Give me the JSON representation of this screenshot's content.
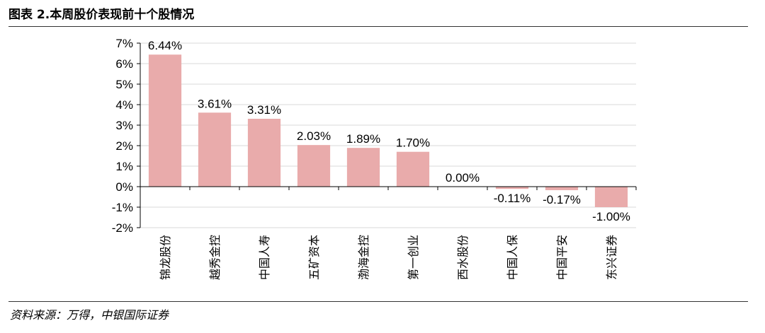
{
  "header": {
    "title": "图表 2.本周股价表现前十个股情况"
  },
  "source": "资料来源：万得，中银国际证券",
  "colors": {
    "bar": "#e9abab",
    "grid": "#d9d9d9",
    "axis": "#000000"
  },
  "chart_data": {
    "type": "bar",
    "categories": [
      "锦龙股份",
      "越秀金控",
      "中国人寿",
      "五矿资本",
      "渤海金控",
      "第一创业",
      "西水股份",
      "中国人保",
      "中国平安",
      "东兴证券"
    ],
    "values": [
      6.44,
      3.61,
      3.31,
      2.03,
      1.89,
      1.7,
      0.0,
      -0.11,
      -0.17,
      -1.0
    ],
    "data_labels": [
      "6.44%",
      "3.61%",
      "3.31%",
      "2.03%",
      "1.89%",
      "1.70%",
      "0.00%",
      "-0.11%",
      "-0.17%",
      "-1.00%"
    ],
    "y_ticks": [
      7,
      6,
      5,
      4,
      3,
      2,
      1,
      0,
      -1,
      -2
    ],
    "y_tick_labels": [
      "7%",
      "6%",
      "5%",
      "4%",
      "3%",
      "2%",
      "1%",
      "0%",
      "-1%",
      "-2%"
    ],
    "ylim": [
      -2,
      7
    ],
    "unit": "%",
    "grid": true,
    "legend": "none",
    "title": "",
    "xlabel": "",
    "ylabel": ""
  }
}
